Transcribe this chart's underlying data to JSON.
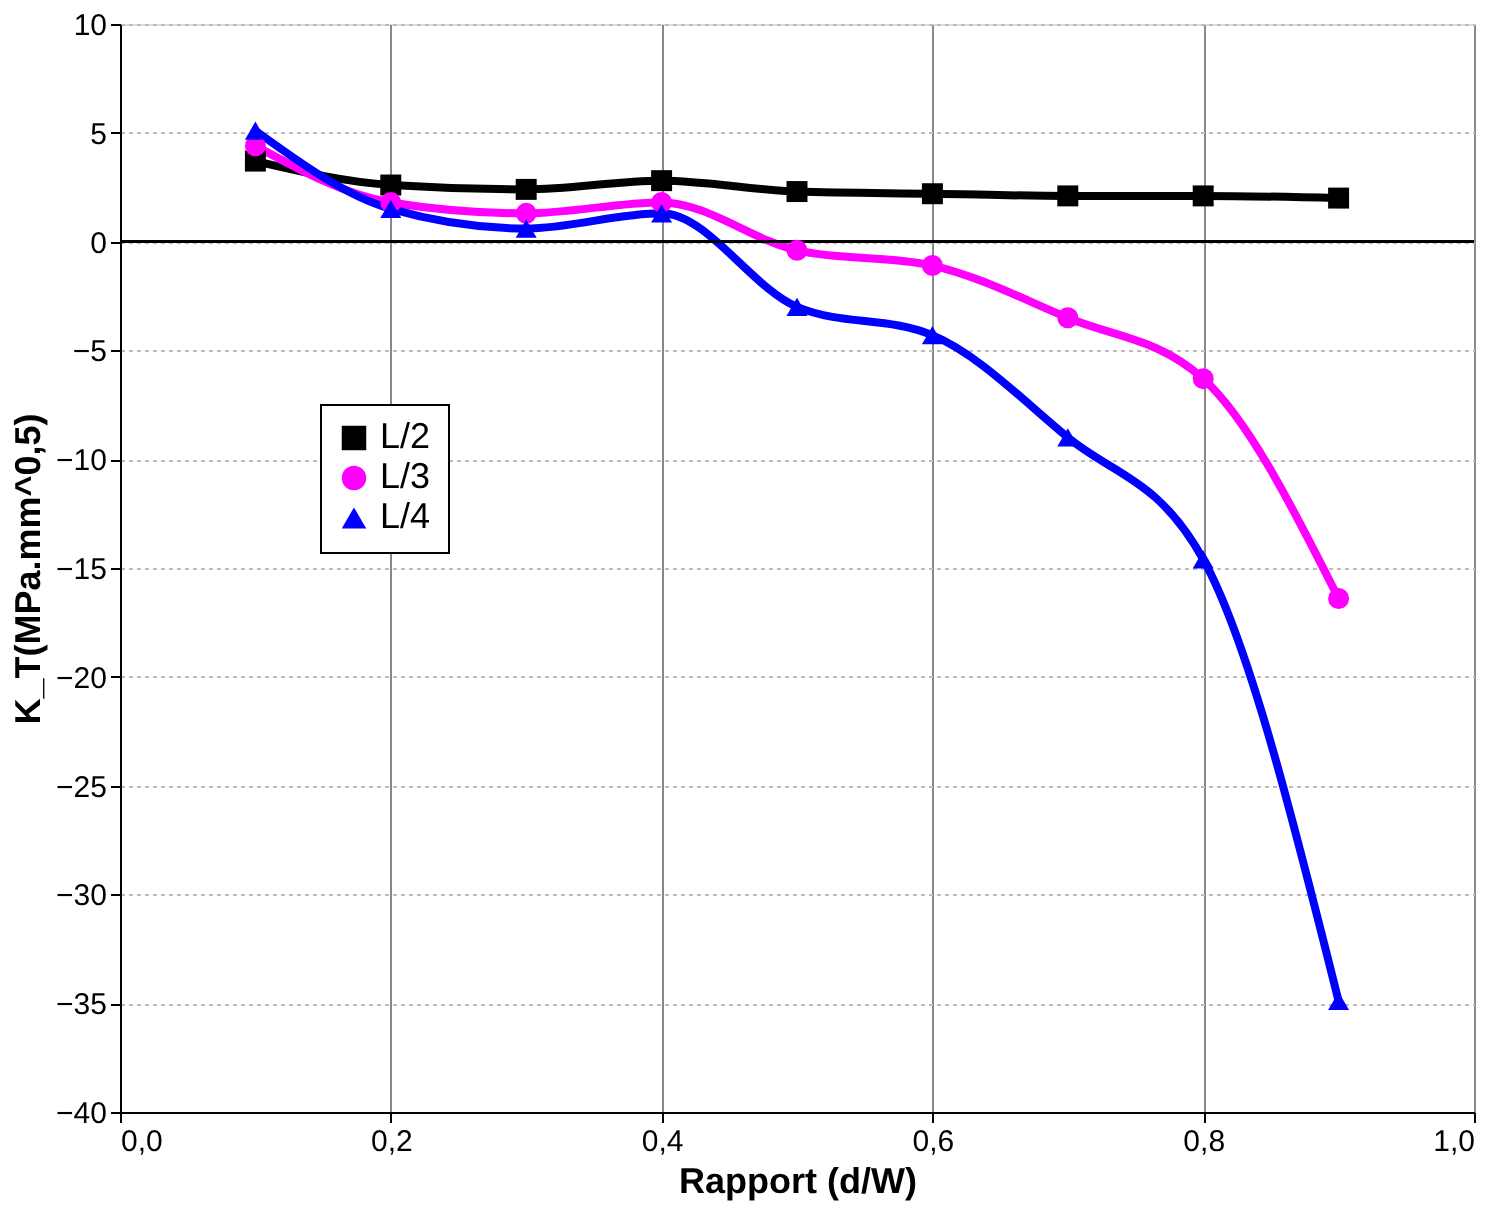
{
  "chart_data": {
    "type": "line",
    "xlabel": "Rapport (d/W)",
    "ylabel": "K_T(MPa.mm^0,5)",
    "x": [
      0.1,
      0.2,
      0.3,
      0.4,
      0.5,
      0.6,
      0.7,
      0.8,
      0.9
    ],
    "series": [
      {
        "name": "L/2",
        "color": "#000000",
        "marker": "square",
        "values": [
          3.7,
          2.6,
          2.4,
          2.8,
          2.3,
          2.2,
          2.1,
          2.1,
          2.0
        ]
      },
      {
        "name": "L/3",
        "color": "#ff00ff",
        "marker": "circle",
        "values": [
          4.4,
          1.8,
          1.3,
          1.8,
          -0.4,
          -1.1,
          -3.5,
          -6.3,
          -16.4
        ]
      },
      {
        "name": "L/4",
        "color": "#0000ff",
        "marker": "triangle",
        "values": [
          5.1,
          1.5,
          0.6,
          1.3,
          -3.0,
          -4.3,
          -9.0,
          -14.6,
          -34.9
        ]
      }
    ],
    "xlim": [
      0,
      1.0
    ],
    "xticks": [
      {
        "value": 0,
        "label": "0,0"
      },
      {
        "value": 0.2,
        "label": "0,2"
      },
      {
        "value": 0.4,
        "label": "0,4"
      },
      {
        "value": 0.6,
        "label": "0,6"
      },
      {
        "value": 0.8,
        "label": "0,8"
      },
      {
        "value": 1.0,
        "label": "1,0"
      }
    ],
    "ylim": [
      -40,
      10
    ],
    "yticks": [
      -40,
      -35,
      -30,
      -25,
      -20,
      -15,
      -10,
      -5,
      0,
      5,
      10
    ],
    "ref_lines": [
      {
        "axis": "y",
        "value": 0,
        "color": "#000000"
      }
    ],
    "grid": true,
    "legend": "left",
    "line_style": "solid"
  }
}
